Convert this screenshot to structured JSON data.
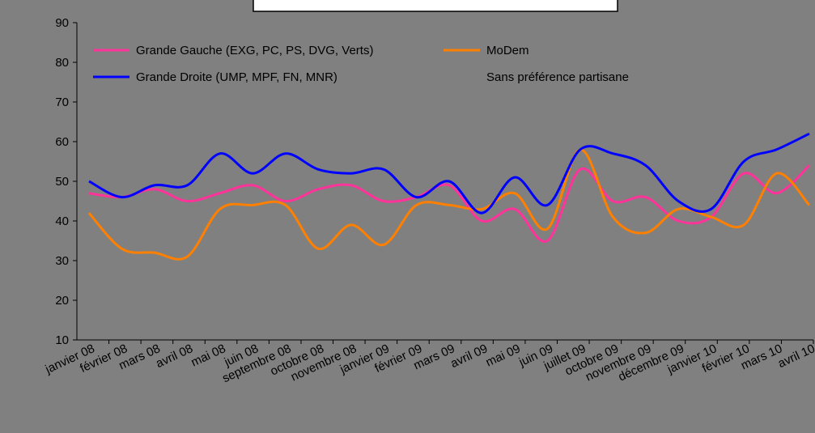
{
  "chart_data": {
    "type": "line",
    "categories": [
      "janvier 08",
      "février 08",
      "mars 08",
      "avril 08",
      "mai 08",
      "juin 08",
      "septembre 08",
      "octobre 08",
      "novembre 08",
      "janvier 09",
      "février 09",
      "mars 09",
      "avril 09",
      "mai 09",
      "juin 09",
      "juillet 09",
      "octobre 09",
      "novembre 09",
      "décembre 09",
      "janvier 10",
      "février 10",
      "mars 10",
      "avril 10"
    ],
    "series": [
      {
        "name": "Grande Gauche (EXG, PC, PS, DVG, Verts)",
        "color": "#ff3399",
        "values": [
          47,
          46,
          48,
          45,
          47,
          49,
          45,
          48,
          49,
          45,
          46,
          49,
          40,
          43,
          35,
          53,
          45,
          46,
          40,
          41,
          52,
          47,
          54
        ]
      },
      {
        "name": "MoDem",
        "color": "#ff8000",
        "values": [
          42,
          33,
          32,
          31,
          43,
          44,
          44,
          33,
          39,
          34,
          44,
          44,
          43,
          47,
          38,
          58,
          41,
          37,
          43,
          41,
          39,
          52,
          44
        ]
      },
      {
        "name": "Grande Droite (UMP, MPF, FN, MNR)",
        "color": "#0000ff",
        "values": [
          50,
          46,
          49,
          49,
          57,
          52,
          57,
          53,
          52,
          53,
          46,
          50,
          42,
          51,
          44,
          58,
          57,
          54,
          45,
          43,
          55,
          58,
          62
        ]
      },
      {
        "name": "Sans préférence partisane",
        "color": "#808080",
        "values": [
          null,
          null,
          null,
          null,
          null,
          null,
          null,
          null,
          null,
          null,
          null,
          null,
          null,
          null,
          null,
          null,
          null,
          null,
          null,
          null,
          null,
          null,
          null
        ]
      }
    ],
    "ylim": [
      10,
      90
    ],
    "yticks": [
      10,
      20,
      30,
      40,
      50,
      60,
      70,
      80,
      90
    ]
  }
}
